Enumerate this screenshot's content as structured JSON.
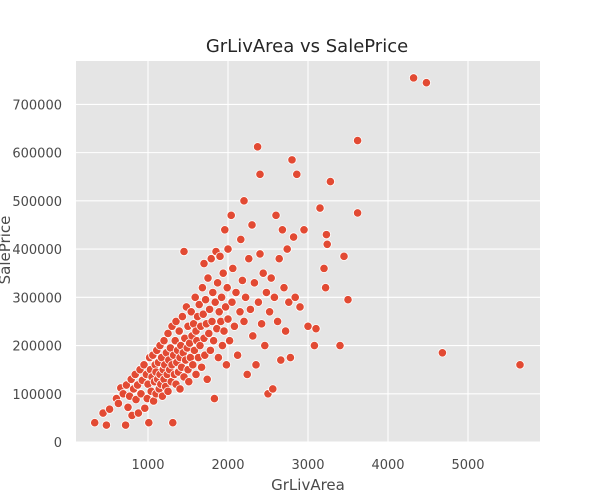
{
  "chart_data": {
    "type": "scatter",
    "title": "GrLivArea vs SalePrice",
    "xlabel": "GrLivArea",
    "ylabel": "SalePrice",
    "xlim": [
      100,
      5900
    ],
    "ylim": [
      0,
      790000
    ],
    "x_ticks": [
      1000,
      2000,
      3000,
      4000,
      5000
    ],
    "y_ticks": [
      0,
      100000,
      200000,
      300000,
      400000,
      500000,
      600000,
      700000
    ],
    "grid": true,
    "point_color": "#e24a33",
    "background_color": "#e5e5e5",
    "points": [
      [
        334,
        40000
      ],
      [
        438,
        60000
      ],
      [
        480,
        35000
      ],
      [
        520,
        68000
      ],
      [
        605,
        90000
      ],
      [
        630,
        80000
      ],
      [
        660,
        112000
      ],
      [
        690,
        100000
      ],
      [
        720,
        35000
      ],
      [
        730,
        118000
      ],
      [
        750,
        72000
      ],
      [
        770,
        95000
      ],
      [
        790,
        130000
      ],
      [
        800,
        55000
      ],
      [
        820,
        110000
      ],
      [
        840,
        140000
      ],
      [
        850,
        88000
      ],
      [
        870,
        118000
      ],
      [
        880,
        60000
      ],
      [
        900,
        150000
      ],
      [
        912,
        100000
      ],
      [
        930,
        128000
      ],
      [
        950,
        160000
      ],
      [
        960,
        70000
      ],
      [
        980,
        140000
      ],
      [
        990,
        90000
      ],
      [
        1000,
        120000
      ],
      [
        1010,
        40000
      ],
      [
        1020,
        175000
      ],
      [
        1030,
        150000
      ],
      [
        1040,
        105000
      ],
      [
        1050,
        135000
      ],
      [
        1060,
        180000
      ],
      [
        1070,
        85000
      ],
      [
        1080,
        125000
      ],
      [
        1090,
        160000
      ],
      [
        1100,
        145000
      ],
      [
        1100,
        100000
      ],
      [
        1110,
        190000
      ],
      [
        1120,
        130000
      ],
      [
        1130,
        165000
      ],
      [
        1140,
        110000
      ],
      [
        1150,
        200000
      ],
      [
        1150,
        140000
      ],
      [
        1160,
        120000
      ],
      [
        1170,
        175000
      ],
      [
        1180,
        95000
      ],
      [
        1190,
        150000
      ],
      [
        1200,
        210000
      ],
      [
        1200,
        130000
      ],
      [
        1210,
        160000
      ],
      [
        1220,
        115000
      ],
      [
        1230,
        185000
      ],
      [
        1240,
        140000
      ],
      [
        1250,
        225000
      ],
      [
        1250,
        105000
      ],
      [
        1260,
        170000
      ],
      [
        1270,
        150000
      ],
      [
        1280,
        195000
      ],
      [
        1290,
        125000
      ],
      [
        1300,
        240000
      ],
      [
        1300,
        160000
      ],
      [
        1310,
        40000
      ],
      [
        1320,
        180000
      ],
      [
        1330,
        140000
      ],
      [
        1340,
        210000
      ],
      [
        1350,
        250000
      ],
      [
        1350,
        120000
      ],
      [
        1360,
        165000
      ],
      [
        1370,
        190000
      ],
      [
        1380,
        145000
      ],
      [
        1390,
        230000
      ],
      [
        1400,
        175000
      ],
      [
        1400,
        110000
      ],
      [
        1410,
        200000
      ],
      [
        1420,
        155000
      ],
      [
        1430,
        260000
      ],
      [
        1440,
        185000
      ],
      [
        1450,
        395000
      ],
      [
        1450,
        135000
      ],
      [
        1460,
        215000
      ],
      [
        1470,
        170000
      ],
      [
        1480,
        280000
      ],
      [
        1490,
        195000
      ],
      [
        1500,
        150000
      ],
      [
        1500,
        240000
      ],
      [
        1510,
        125000
      ],
      [
        1520,
        205000
      ],
      [
        1530,
        175000
      ],
      [
        1540,
        270000
      ],
      [
        1550,
        220000
      ],
      [
        1560,
        160000
      ],
      [
        1570,
        245000
      ],
      [
        1580,
        190000
      ],
      [
        1590,
        300000
      ],
      [
        1600,
        230000
      ],
      [
        1600,
        140000
      ],
      [
        1610,
        210000
      ],
      [
        1620,
        260000
      ],
      [
        1630,
        175000
      ],
      [
        1640,
        285000
      ],
      [
        1650,
        200000
      ],
      [
        1660,
        240000
      ],
      [
        1670,
        155000
      ],
      [
        1680,
        320000
      ],
      [
        1690,
        265000
      ],
      [
        1700,
        215000
      ],
      [
        1700,
        370000
      ],
      [
        1710,
        180000
      ],
      [
        1720,
        295000
      ],
      [
        1730,
        245000
      ],
      [
        1740,
        130000
      ],
      [
        1750,
        340000
      ],
      [
        1760,
        225000
      ],
      [
        1770,
        275000
      ],
      [
        1780,
        190000
      ],
      [
        1790,
        380000
      ],
      [
        1800,
        250000
      ],
      [
        1810,
        310000
      ],
      [
        1820,
        210000
      ],
      [
        1830,
        90000
      ],
      [
        1840,
        290000
      ],
      [
        1850,
        395000
      ],
      [
        1860,
        235000
      ],
      [
        1870,
        330000
      ],
      [
        1880,
        175000
      ],
      [
        1890,
        270000
      ],
      [
        1900,
        385000
      ],
      [
        1910,
        250000
      ],
      [
        1920,
        300000
      ],
      [
        1930,
        200000
      ],
      [
        1940,
        350000
      ],
      [
        1950,
        230000
      ],
      [
        1960,
        440000
      ],
      [
        1970,
        280000
      ],
      [
        1980,
        160000
      ],
      [
        1990,
        320000
      ],
      [
        2000,
        400000
      ],
      [
        2000,
        255000
      ],
      [
        2020,
        210000
      ],
      [
        2040,
        470000
      ],
      [
        2050,
        290000
      ],
      [
        2060,
        360000
      ],
      [
        2080,
        240000
      ],
      [
        2100,
        310000
      ],
      [
        2120,
        180000
      ],
      [
        2150,
        270000
      ],
      [
        2160,
        420000
      ],
      [
        2180,
        335000
      ],
      [
        2200,
        500000
      ],
      [
        2200,
        250000
      ],
      [
        2220,
        300000
      ],
      [
        2240,
        140000
      ],
      [
        2260,
        380000
      ],
      [
        2280,
        275000
      ],
      [
        2300,
        450000
      ],
      [
        2310,
        220000
      ],
      [
        2330,
        330000
      ],
      [
        2350,
        160000
      ],
      [
        2370,
        612000
      ],
      [
        2380,
        290000
      ],
      [
        2400,
        555000
      ],
      [
        2400,
        390000
      ],
      [
        2420,
        245000
      ],
      [
        2440,
        350000
      ],
      [
        2460,
        200000
      ],
      [
        2480,
        310000
      ],
      [
        2500,
        100000
      ],
      [
        2520,
        270000
      ],
      [
        2540,
        340000
      ],
      [
        2560,
        110000
      ],
      [
        2580,
        300000
      ],
      [
        2600,
        470000
      ],
      [
        2620,
        250000
      ],
      [
        2640,
        380000
      ],
      [
        2660,
        170000
      ],
      [
        2680,
        440000
      ],
      [
        2700,
        320000
      ],
      [
        2720,
        230000
      ],
      [
        2740,
        400000
      ],
      [
        2760,
        290000
      ],
      [
        2780,
        175000
      ],
      [
        2800,
        585000
      ],
      [
        2820,
        425000
      ],
      [
        2840,
        300000
      ],
      [
        2860,
        555000
      ],
      [
        2900,
        280000
      ],
      [
        2950,
        440000
      ],
      [
        3000,
        240000
      ],
      [
        3080,
        200000
      ],
      [
        3100,
        235000
      ],
      [
        3150,
        485000
      ],
      [
        3200,
        360000
      ],
      [
        3220,
        320000
      ],
      [
        3230,
        430000
      ],
      [
        3240,
        410000
      ],
      [
        3280,
        540000
      ],
      [
        3400,
        200000
      ],
      [
        3450,
        385000
      ],
      [
        3500,
        295000
      ],
      [
        3620,
        625000
      ],
      [
        3620,
        475000
      ],
      [
        4320,
        755000
      ],
      [
        4480,
        745000
      ],
      [
        4680,
        185000
      ],
      [
        5650,
        160000
      ]
    ]
  }
}
